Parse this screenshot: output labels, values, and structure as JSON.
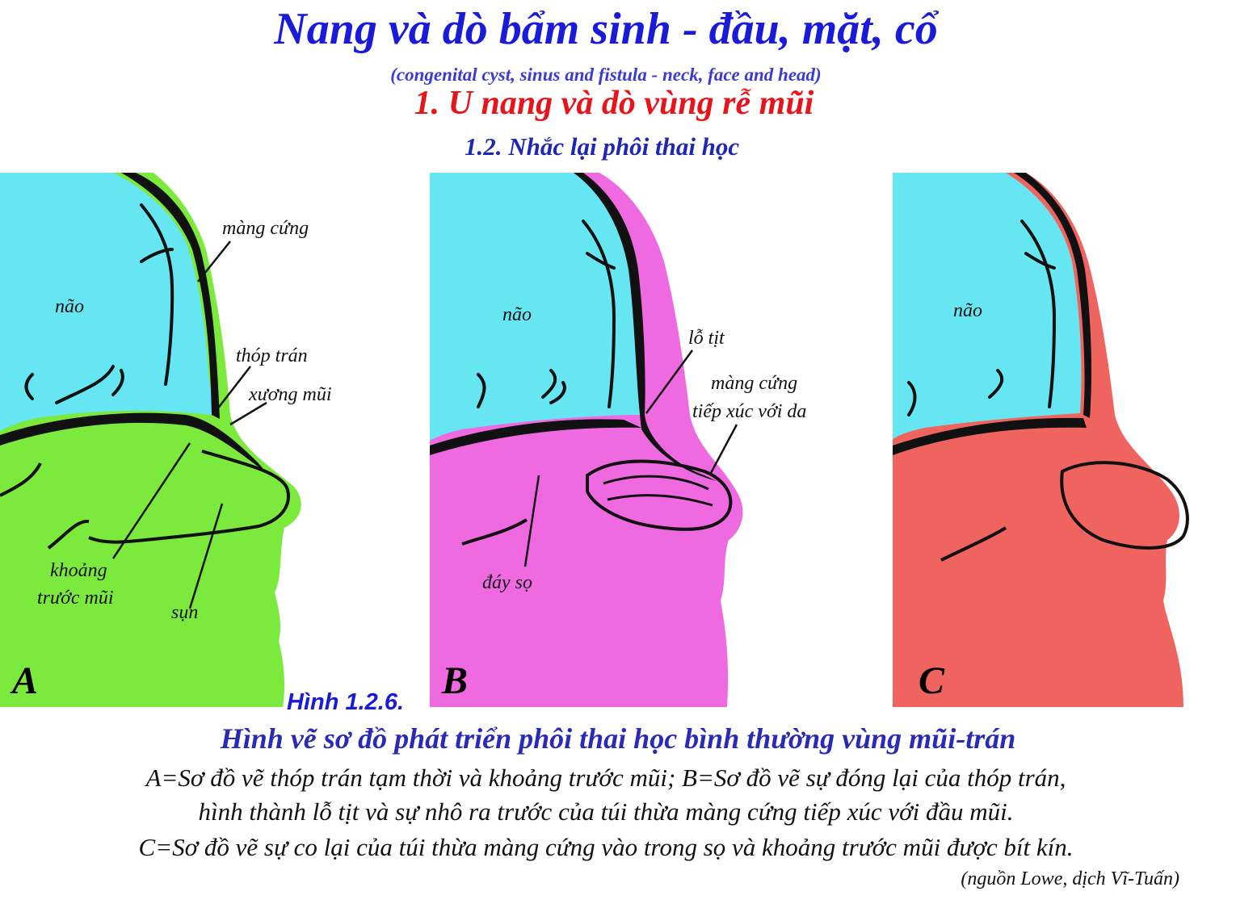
{
  "header": {
    "title": "Nang và dò bẩm sinh - đầu, mặt, cổ",
    "subtitle": "(congenital cyst, sinus and fistula - neck, face and head)",
    "section": "1. U nang và dò vùng rễ mũi",
    "subsection": "1.2. Nhắc lại phôi thai học"
  },
  "panels": {
    "a": {
      "letter": "A",
      "color": "#7bea3c",
      "labels": {
        "brain": "não",
        "dura": "màng cứng",
        "fontanelle": "thóp trán",
        "nasal_bone": "xương mũi",
        "prenasal_space_1": "khoảng",
        "prenasal_space_2": "trước mũi",
        "cartilage": "sụn"
      }
    },
    "b": {
      "letter": "B",
      "color": "#ef6ae0",
      "labels": {
        "brain": "não",
        "foramen_cecum": "lỗ tịt",
        "dura_contact_1": "màng cứng",
        "dura_contact_2": "tiếp xúc với da",
        "skull_base": "đáy sọ"
      }
    },
    "c": {
      "letter": "C",
      "color": "#f0645f",
      "labels": {
        "brain": "não"
      }
    },
    "brain_color": "#66e6f2"
  },
  "figure": {
    "number": "Hình 1.2.6.",
    "title": "Hình vẽ sơ đồ phát triển phôi thai học bình thường vùng mũi-trán",
    "caption_line_1": "A=Sơ đồ vẽ thóp trán tạm thời và khoảng trước mũi;  B=Sơ đồ vẽ sự đóng lại của thóp trán,",
    "caption_line_2": "hình thành lỗ tịt và sự nhô ra trước của túi thừa màng cứng tiếp xúc với đầu mũi.",
    "caption_line_3": "C=Sơ đồ vẽ sự co lại của túi thừa màng cứng vào trong sọ và khoảng trước mũi được bít kín.",
    "source": "(nguồn Lowe, dịch Vĩ-Tuấn)"
  }
}
